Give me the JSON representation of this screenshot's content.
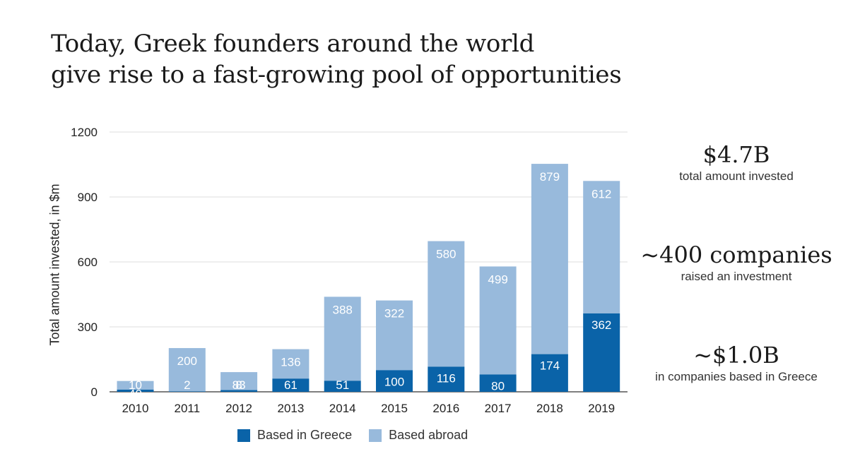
{
  "title_lines": [
    "Today, Greek founders around the world",
    "give rise to a fast-growing pool of opportunities"
  ],
  "watermark": "",
  "colors": {
    "greece": "#0a63a8",
    "abroad": "#98badc",
    "grid": "#dcdcdc",
    "axis": "#333333"
  },
  "legend": {
    "greece_label": "Based in Greece",
    "abroad_label": "Based abroad"
  },
  "stats": [
    {
      "big": "$4.7B",
      "small": "total amount invested"
    },
    {
      "big": "~400 companies",
      "small": "raised an investment"
    },
    {
      "big": "~$1.0B",
      "small": "in companies based in Greece"
    }
  ],
  "chart_data": {
    "type": "bar",
    "stacked": true,
    "ylabel": "Total amount invested, in $m",
    "ylim": [
      0,
      1200
    ],
    "yticks": [
      0,
      300,
      600,
      900,
      1200
    ],
    "grid": true,
    "legend_position": "bottom",
    "categories": [
      "2010",
      "2011",
      "2012",
      "2013",
      "2014",
      "2015",
      "2016",
      "2017",
      "2018",
      "2019"
    ],
    "series": [
      {
        "name": "Based in Greece",
        "values": [
          10,
          2,
          8,
          61,
          51,
          100,
          116,
          80,
          174,
          362
        ],
        "labels": [
          "10",
          "2",
          "8",
          "61",
          "51",
          "100",
          "116",
          "80",
          "174",
          "362"
        ]
      },
      {
        "name": "Based abroad",
        "values": [
          40,
          200,
          83,
          136,
          388,
          322,
          580,
          499,
          879,
          612
        ],
        "labels": [
          "40",
          "200",
          "83",
          "136",
          "388",
          "322",
          "580",
          "499",
          "879",
          "612"
        ]
      }
    ]
  }
}
